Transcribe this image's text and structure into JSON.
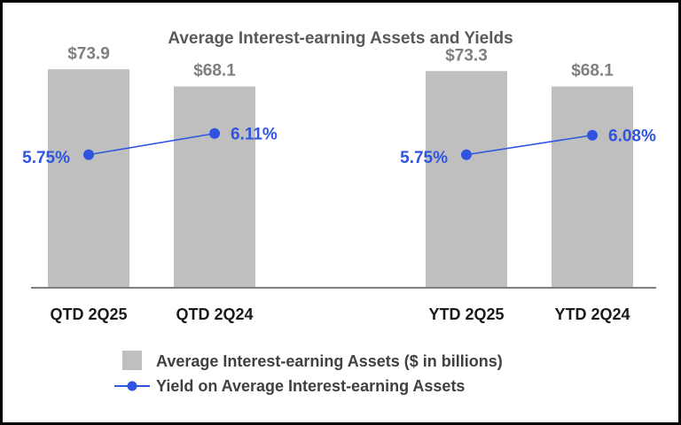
{
  "chart_data": {
    "type": "bar",
    "title": "Average Interest-earning Assets and Yields",
    "categories": [
      "QTD 2Q25",
      "QTD 2Q24",
      "YTD 2Q25",
      "YTD 2Q24"
    ],
    "groups": [
      {
        "categories": [
          "QTD 2Q25",
          "QTD 2Q24"
        ]
      },
      {
        "categories": [
          "YTD 2Q25",
          "YTD 2Q24"
        ]
      }
    ],
    "series": [
      {
        "name": "Average Interest-earning Assets ($ in billions)",
        "type": "bar",
        "values": [
          73.9,
          68.1,
          73.3,
          68.1
        ],
        "labels": [
          "$73.9",
          "$68.1",
          "$73.3",
          "$68.1"
        ],
        "color": "#bfbfbf"
      },
      {
        "name": "Yield on Average Interest-earning Assets",
        "type": "line",
        "values": [
          5.75,
          6.11,
          5.75,
          6.08
        ],
        "labels": [
          "5.75%",
          "6.11%",
          "5.75%",
          "6.08%"
        ],
        "color": "#2f55e0"
      }
    ],
    "bar_ylim": [
      0,
      90
    ],
    "line_ylim": [
      3.5,
      8.0
    ],
    "legend_position": "bottom",
    "grid": false
  }
}
